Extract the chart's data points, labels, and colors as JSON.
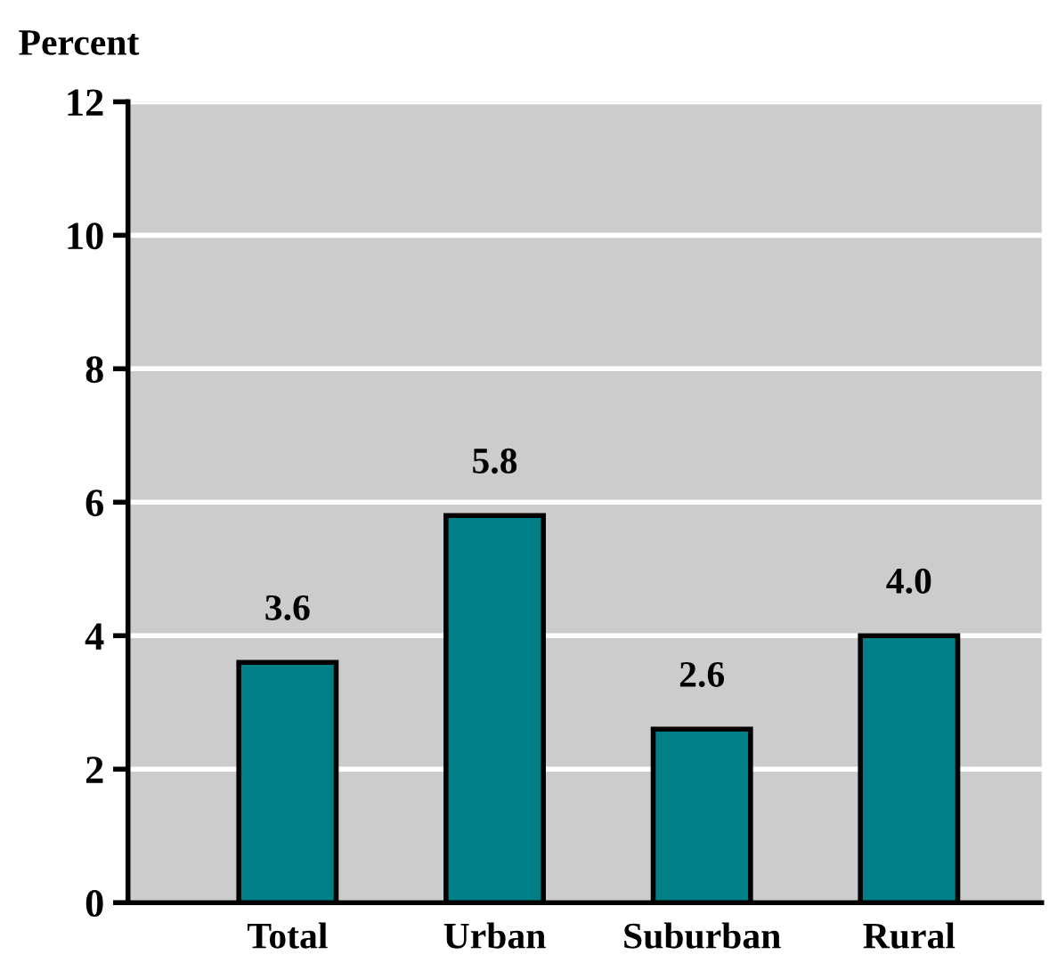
{
  "chart_data": {
    "type": "bar",
    "ylabel": "Percent",
    "categories": [
      "Total",
      "Urban",
      "Suburban",
      "Rural"
    ],
    "values": [
      3.6,
      5.8,
      2.6,
      4.0
    ],
    "value_labels": [
      "3.6",
      "5.8",
      "2.6",
      "4.0"
    ],
    "color": "#007f86",
    "ylim": [
      0,
      12
    ],
    "yticks": [
      0,
      2,
      4,
      6,
      8,
      10,
      12
    ],
    "grid": "y"
  }
}
